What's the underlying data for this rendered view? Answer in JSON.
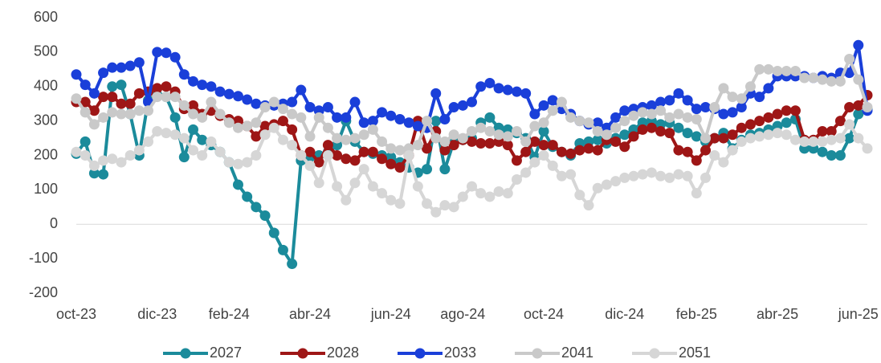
{
  "chart_data": {
    "type": "line",
    "categories": [
      "oct-23",
      null,
      null,
      null,
      null,
      null,
      null,
      null,
      null,
      "dic-23",
      null,
      null,
      null,
      null,
      null,
      null,
      null,
      "feb-24",
      null,
      null,
      null,
      null,
      null,
      null,
      null,
      null,
      "abr-24",
      null,
      null,
      null,
      null,
      null,
      null,
      null,
      null,
      "jun-24",
      null,
      null,
      null,
      null,
      null,
      null,
      null,
      "ago-24",
      null,
      null,
      null,
      null,
      null,
      null,
      null,
      null,
      "oct-24",
      null,
      null,
      null,
      null,
      null,
      null,
      null,
      null,
      "dic-24",
      null,
      null,
      null,
      null,
      null,
      null,
      null,
      "feb-25",
      null,
      null,
      null,
      null,
      null,
      null,
      null,
      null,
      "abr-25",
      null,
      null,
      null,
      null,
      null,
      null,
      null,
      null,
      "jun-25",
      null
    ],
    "series": [
      {
        "name": "2027",
        "color": "#1b8b9b",
        "values": [
          205,
          240,
          148,
          145,
          400,
          405,
          320,
          200,
          360,
          375,
          370,
          310,
          195,
          275,
          245,
          230,
          210,
          180,
          115,
          80,
          50,
          25,
          -25,
          -75,
          -115,
          185,
          195,
          200,
          210,
          230,
          300,
          240,
          210,
          205,
          200,
          195,
          180,
          165,
          150,
          160,
          300,
          160,
          240,
          245,
          250,
          295,
          310,
          280,
          275,
          265,
          250,
          195,
          270,
          225,
          210,
          200,
          235,
          240,
          245,
          235,
          250,
          260,
          275,
          295,
          300,
          290,
          295,
          280,
          265,
          255,
          240,
          250,
          265,
          220,
          245,
          260,
          265,
          275,
          285,
          295,
          305,
          220,
          220,
          210,
          200,
          200,
          250,
          320,
          335
        ]
      },
      {
        "name": "2028",
        "color": "#9e1616",
        "values": [
          355,
          355,
          330,
          370,
          370,
          350,
          350,
          380,
          385,
          395,
          400,
          385,
          335,
          345,
          320,
          330,
          315,
          305,
          300,
          285,
          255,
          285,
          290,
          300,
          275,
          200,
          210,
          180,
          230,
          200,
          190,
          185,
          210,
          210,
          190,
          175,
          165,
          200,
          300,
          220,
          270,
          215,
          230,
          245,
          240,
          235,
          235,
          240,
          230,
          185,
          210,
          240,
          230,
          230,
          210,
          205,
          215,
          220,
          215,
          245,
          240,
          225,
          255,
          275,
          280,
          270,
          265,
          215,
          210,
          185,
          215,
          250,
          250,
          260,
          280,
          290,
          300,
          310,
          320,
          330,
          330,
          245,
          245,
          270,
          270,
          300,
          340,
          345,
          375
        ]
      },
      {
        "name": "2033",
        "color": "#1a3fd9",
        "values": [
          435,
          405,
          380,
          440,
          455,
          455,
          460,
          470,
          355,
          500,
          498,
          485,
          435,
          415,
          405,
          400,
          385,
          378,
          372,
          362,
          350,
          345,
          345,
          350,
          355,
          390,
          340,
          330,
          340,
          310,
          310,
          355,
          295,
          300,
          325,
          315,
          305,
          295,
          285,
          280,
          380,
          305,
          340,
          345,
          355,
          400,
          410,
          395,
          390,
          385,
          380,
          320,
          345,
          360,
          335,
          320,
          300,
          290,
          295,
          280,
          310,
          330,
          335,
          340,
          345,
          355,
          360,
          380,
          360,
          335,
          340,
          335,
          320,
          325,
          340,
          380,
          370,
          395,
          430,
          430,
          430,
          430,
          425,
          430,
          425,
          440,
          440,
          520,
          330
        ]
      },
      {
        "name": "2041",
        "color": "#c9c9c9",
        "values": [
          365,
          325,
          290,
          310,
          325,
          320,
          320,
          330,
          330,
          370,
          370,
          370,
          345,
          320,
          310,
          355,
          320,
          295,
          280,
          285,
          295,
          340,
          355,
          335,
          320,
          310,
          255,
          310,
          280,
          250,
          245,
          250,
          260,
          275,
          240,
          220,
          215,
          220,
          230,
          300,
          250,
          240,
          260,
          250,
          270,
          280,
          270,
          260,
          255,
          270,
          240,
          285,
          295,
          330,
          355,
          310,
          300,
          295,
          270,
          260,
          280,
          300,
          315,
          325,
          320,
          330,
          310,
          320,
          310,
          305,
          250,
          340,
          395,
          370,
          365,
          400,
          450,
          450,
          445,
          445,
          445,
          425,
          425,
          420,
          415,
          415,
          480,
          420,
          340
        ]
      },
      {
        "name": "2051",
        "color": "#d6d6d6",
        "values": [
          210,
          200,
          170,
          185,
          190,
          180,
          200,
          215,
          240,
          270,
          265,
          260,
          250,
          215,
          200,
          240,
          210,
          180,
          175,
          180,
          200,
          260,
          280,
          245,
          230,
          200,
          170,
          120,
          200,
          110,
          70,
          120,
          160,
          110,
          90,
          70,
          60,
          200,
          110,
          60,
          35,
          55,
          50,
          80,
          110,
          90,
          80,
          95,
          90,
          130,
          150,
          180,
          200,
          170,
          140,
          145,
          85,
          55,
          105,
          115,
          125,
          135,
          140,
          145,
          150,
          140,
          135,
          145,
          140,
          90,
          135,
          200,
          180,
          215,
          240,
          250,
          255,
          260,
          265,
          260,
          245,
          240,
          240,
          240,
          245,
          250,
          290,
          250,
          220
        ]
      }
    ],
    "ylim": [
      -200,
      600
    ],
    "yticks": [
      -200,
      -100,
      0,
      100,
      200,
      300,
      400,
      500,
      600
    ],
    "legend": "bottom"
  }
}
